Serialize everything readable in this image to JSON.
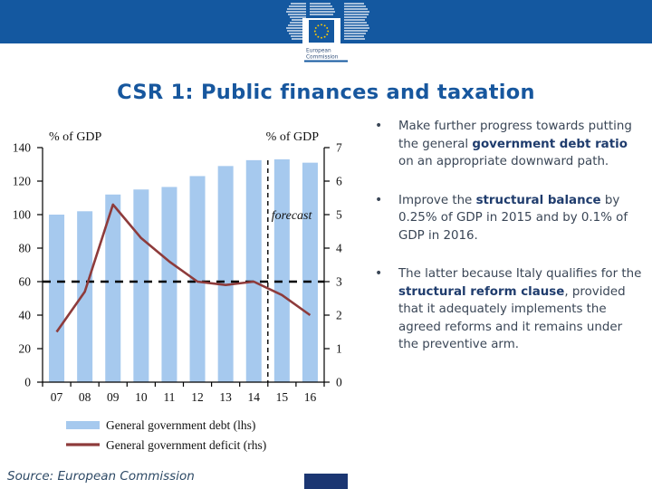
{
  "slide": {
    "title": "CSR 1: Public finances and taxation",
    "source": "Source: European Commission",
    "logo_lines": [
      "European",
      "Commission"
    ]
  },
  "colors": {
    "band_blue": "#1458A0",
    "title_blue": "#17579E",
    "bar_fill": "#A6C9EE",
    "line_red": "#8E3B3B",
    "text_regular": "#3A4656",
    "text_bold": "#1F3C6D",
    "source_text": "#2E4A66",
    "logo_text": "#33517C",
    "star_yellow": "#FFCC00",
    "number_box_navy": "#1B3672",
    "axis_black": "#111111"
  },
  "bullets": [
    {
      "segments": [
        {
          "text": "Make further progress towards putting the general ",
          "bold": false
        },
        {
          "text": "government debt ratio",
          "bold": true
        },
        {
          "text": " on an appropriate downward path.",
          "bold": false
        }
      ]
    },
    {
      "segments": [
        {
          "text": "Improve the ",
          "bold": false
        },
        {
          "text": "structural balance",
          "bold": true
        },
        {
          "text": " by 0.25% of GDP in 2015 and by 0.1% of GDP in 2016.",
          "bold": false
        }
      ]
    },
    {
      "segments": [
        {
          "text": "The latter because Italy qualifies for the ",
          "bold": false
        },
        {
          "text": "structural reform clause",
          "bold": true
        },
        {
          "text": ", provided that it adequately implements the agreed reforms and it remains under the preventive arm.",
          "bold": false
        }
      ]
    }
  ],
  "chart_data": {
    "type": "bar",
    "categories": [
      "07",
      "08",
      "09",
      "10",
      "11",
      "12",
      "13",
      "14",
      "15",
      "16"
    ],
    "series": [
      {
        "name": "General government debt (lhs)",
        "type": "bar",
        "axis": "left",
        "values": [
          100,
          102,
          112,
          115,
          116.5,
          123,
          129,
          132.5,
          133,
          131
        ],
        "color": "#A6C9EE"
      },
      {
        "name": "General government deficit (rhs)",
        "type": "line",
        "axis": "right",
        "values": [
          1.5,
          2.7,
          5.3,
          4.3,
          3.6,
          3.0,
          2.9,
          3.0,
          2.6,
          2.0
        ],
        "color": "#8E3B3B"
      }
    ],
    "left_axis": {
      "label": "% of GDP",
      "min": 0,
      "max": 140,
      "step": 20
    },
    "right_axis": {
      "label": "% of GDP",
      "min": 0,
      "max": 7,
      "step": 1
    },
    "reference_line": {
      "axis": "right",
      "value": 3,
      "style": "dashed",
      "color": "#000000"
    },
    "forecast_divider": {
      "after_category": "14",
      "label": "forecast",
      "label_value_rhs": 5
    },
    "legend_position": "bottom",
    "grid": false
  }
}
